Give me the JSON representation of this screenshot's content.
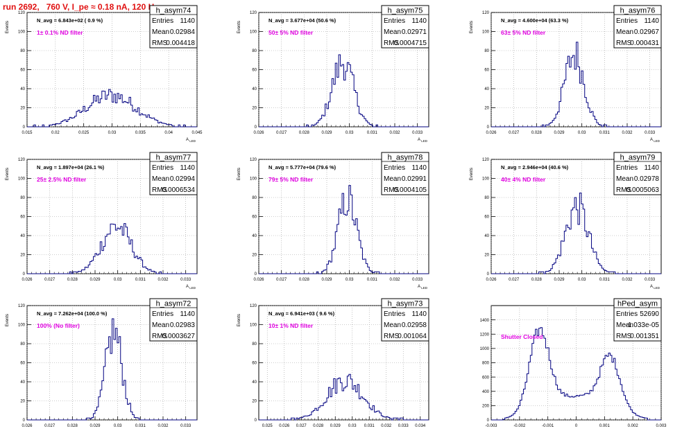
{
  "run_title": "run 2692,   760 V, I_pe ≈ 0.18 nA, 120 Hz",
  "colors": {
    "histogram": "#000080",
    "annotation": "#e000e0",
    "title": "#e01010",
    "grid": "#9a9a9a"
  },
  "chart_data": [
    {
      "type": "bar",
      "name": "h_asym74",
      "navg": "N_avg = 6.843e+02 ( 0.9 %)",
      "filter": "1± 0.1% ND filter",
      "stats": [
        [
          "Entries",
          "1140"
        ],
        [
          "Mean",
          "0.02984"
        ],
        [
          "RMS",
          "0.004418"
        ]
      ],
      "xlim": [
        0.015,
        0.045
      ],
      "ylim": [
        0,
        120
      ],
      "xticks": [
        0.015,
        0.02,
        0.025,
        0.03,
        0.035,
        0.04,
        0.045
      ],
      "xticklabels": [
        "0.015",
        "0.02",
        "0.025",
        "0.03",
        "0.035",
        "0.04",
        "0.045"
      ],
      "yticks": [
        0,
        20,
        40,
        60,
        80,
        100,
        120
      ],
      "ylabel": "Events",
      "xlabel": "A_LED",
      "shape": {
        "kind": "gauss",
        "mean": 0.02984,
        "sigma": 0.004418,
        "peak": 33
      }
    },
    {
      "type": "bar",
      "name": "h_asym75",
      "navg": "N_avg = 3.677e+04 (50.6 %)",
      "filter": "50± 5% ND filter",
      "stats": [
        [
          "Entries",
          "1140"
        ],
        [
          "Mean",
          "0.02971"
        ],
        [
          "RMS",
          "0.0004715"
        ]
      ],
      "xlim": [
        0.026,
        0.0335
      ],
      "ylim": [
        0,
        120
      ],
      "xticks": [
        0.026,
        0.027,
        0.028,
        0.029,
        0.03,
        0.031,
        0.032,
        0.033
      ],
      "xticklabels": [
        "0.026",
        "0.027",
        "0.028",
        "0.029",
        "0.03",
        "0.031",
        "0.032",
        "0.033"
      ],
      "yticks": [
        0,
        20,
        40,
        60,
        80,
        100,
        120
      ],
      "ylabel": "Events",
      "xlabel": "A_LED",
      "shape": {
        "kind": "gauss",
        "mean": 0.02971,
        "sigma": 0.0004715,
        "peak": 68
      }
    },
    {
      "type": "bar",
      "name": "h_asym76",
      "navg": "N_avg = 4.600e+04 (63.3 %)",
      "filter": "63± 5% ND filter",
      "stats": [
        [
          "Entries",
          "1140"
        ],
        [
          "Mean",
          "0.02967"
        ],
        [
          "RMS",
          "0.000431"
        ]
      ],
      "xlim": [
        0.026,
        0.0335
      ],
      "ylim": [
        0,
        120
      ],
      "xticks": [
        0.026,
        0.027,
        0.028,
        0.029,
        0.03,
        0.031,
        0.032,
        0.033
      ],
      "xticklabels": [
        "0.026",
        "0.027",
        "0.028",
        "0.029",
        "0.03",
        "0.031",
        "0.032",
        "0.033"
      ],
      "yticks": [
        0,
        20,
        40,
        60,
        80,
        100,
        120
      ],
      "ylabel": "Events",
      "xlabel": "A_LED",
      "shape": {
        "kind": "gauss",
        "mean": 0.02967,
        "sigma": 0.000431,
        "peak": 76
      }
    },
    {
      "type": "bar",
      "name": "h_asym77",
      "navg": "N_avg = 1.897e+04 (26.1 %)",
      "filter": "25± 2.5% ND filter",
      "stats": [
        [
          "Entries",
          "1140"
        ],
        [
          "Mean",
          "0.02994"
        ],
        [
          "RMS",
          "0.0006534"
        ]
      ],
      "xlim": [
        0.026,
        0.0335
      ],
      "ylim": [
        0,
        120
      ],
      "xticks": [
        0.026,
        0.027,
        0.028,
        0.029,
        0.03,
        0.031,
        0.032,
        0.033
      ],
      "xticklabels": [
        "0.026",
        "0.027",
        "0.028",
        "0.029",
        "0.03",
        "0.031",
        "0.032",
        "0.033"
      ],
      "yticks": [
        0,
        20,
        40,
        60,
        80,
        100,
        120
      ],
      "ylabel": "Events",
      "xlabel": "A_LED",
      "shape": {
        "kind": "gauss",
        "mean": 0.02994,
        "sigma": 0.0006534,
        "peak": 50
      }
    },
    {
      "type": "bar",
      "name": "h_asym78",
      "navg": "N_avg = 5.777e+04 (79.6 %)",
      "filter": "79± 5% ND filter",
      "stats": [
        [
          "Entries",
          "1140"
        ],
        [
          "Mean",
          "0.02991"
        ],
        [
          "RMS",
          "0.0004105"
        ]
      ],
      "xlim": [
        0.026,
        0.0335
      ],
      "ylim": [
        0,
        120
      ],
      "xticks": [
        0.026,
        0.027,
        0.028,
        0.029,
        0.03,
        0.031,
        0.032,
        0.033
      ],
      "xticklabels": [
        "0.026",
        "0.027",
        "0.028",
        "0.029",
        "0.03",
        "0.031",
        "0.032",
        "0.033"
      ],
      "yticks": [
        0,
        20,
        40,
        60,
        80,
        100,
        120
      ],
      "ylabel": "Events",
      "xlabel": "A_LED",
      "shape": {
        "kind": "gauss",
        "mean": 0.02991,
        "sigma": 0.0004105,
        "peak": 78
      }
    },
    {
      "type": "bar",
      "name": "h_asym79",
      "navg": "N_avg = 2.946e+04 (40.6 %)",
      "filter": "40± 4% ND filter",
      "stats": [
        [
          "Entries",
          "1140"
        ],
        [
          "Mean",
          "0.02978"
        ],
        [
          "RMS",
          "0.0005063"
        ]
      ],
      "xlim": [
        0.026,
        0.0335
      ],
      "ylim": [
        0,
        120
      ],
      "xticks": [
        0.026,
        0.027,
        0.028,
        0.029,
        0.03,
        0.031,
        0.032,
        0.033
      ],
      "xticklabels": [
        "0.026",
        "0.027",
        "0.028",
        "0.029",
        "0.03",
        "0.031",
        "0.032",
        "0.033"
      ],
      "yticks": [
        0,
        20,
        40,
        60,
        80,
        100,
        120
      ],
      "ylabel": "Events",
      "xlabel": "A_LED",
      "shape": {
        "kind": "gauss",
        "mean": 0.02978,
        "sigma": 0.0005063,
        "peak": 70
      }
    },
    {
      "type": "bar",
      "name": "h_asym72",
      "navg": "N_avg = 7.262e+04 (100.0 %)",
      "filter": "100% (No filter)",
      "stats": [
        [
          "Entries",
          "1140"
        ],
        [
          "Mean",
          "0.02983"
        ],
        [
          "RMS",
          "0.0003627"
        ]
      ],
      "xlim": [
        0.026,
        0.0335
      ],
      "ylim": [
        0,
        120
      ],
      "xticks": [
        0.026,
        0.027,
        0.028,
        0.029,
        0.03,
        0.031,
        0.032,
        0.033
      ],
      "xticklabels": [
        "0.026",
        "0.027",
        "0.028",
        "0.029",
        "0.03",
        "0.031",
        "0.032",
        "0.033"
      ],
      "yticks": [
        0,
        20,
        40,
        60,
        80,
        100,
        120
      ],
      "ylabel": "Events",
      "xlabel": "A_LED",
      "shape": {
        "kind": "gauss",
        "mean": 0.02983,
        "sigma": 0.0003627,
        "peak": 92
      }
    },
    {
      "type": "bar",
      "name": "h_asym73",
      "navg": "N_avg = 6.941e+03 ( 9.6 %)",
      "filter": "10± 1% ND filter",
      "stats": [
        [
          "Entries",
          "1140"
        ],
        [
          "Mean",
          "0.02958"
        ],
        [
          "RMS",
          "0.001064"
        ]
      ],
      "xlim": [
        0.0245,
        0.0345
      ],
      "ylim": [
        0,
        120
      ],
      "xticks": [
        0.025,
        0.026,
        0.027,
        0.028,
        0.029,
        0.03,
        0.031,
        0.032,
        0.033,
        0.034
      ],
      "xticklabels": [
        "0.025",
        "0.026",
        "0.027",
        "0.028",
        "0.029",
        "0.03",
        "0.031",
        "0.032",
        "0.033",
        "0.034"
      ],
      "yticks": [
        0,
        20,
        40,
        60,
        80,
        100,
        120
      ],
      "ylabel": "Events",
      "xlabel": "A_LED",
      "shape": {
        "kind": "gauss",
        "mean": 0.02958,
        "sigma": 0.001064,
        "peak": 42
      }
    },
    {
      "type": "bar",
      "name": "hPed_asym",
      "navg": "",
      "filter": "Shutter Closed",
      "stats": [
        [
          "Entries",
          "52690"
        ],
        [
          "Mean",
          "-1.033e-05"
        ],
        [
          "RMS",
          "0.001351"
        ]
      ],
      "xlim": [
        -0.003,
        0.003
      ],
      "ylim": [
        0,
        1600
      ],
      "xticks": [
        -0.003,
        -0.002,
        -0.001,
        0,
        0.001,
        0.002,
        0.003
      ],
      "xticklabels": [
        "-0.003",
        "-0.002",
        "-0.001",
        "0",
        "0.001",
        "0.002",
        "0.003"
      ],
      "yticks": [
        0,
        200,
        400,
        600,
        800,
        1000,
        1200,
        1400
      ],
      "ylabel": "",
      "xlabel": "",
      "shape": {
        "kind": "bimodal",
        "m1": -0.0013,
        "s1": 0.00035,
        "a1": 1100,
        "m2": 0.0012,
        "s2": 0.00035,
        "a2": 720,
        "base": 330,
        "bs": 0.0011
      }
    }
  ]
}
